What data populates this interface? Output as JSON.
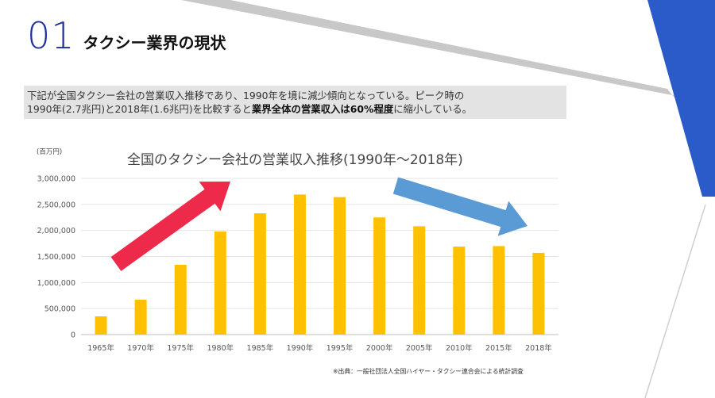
{
  "header": {
    "number": "01",
    "title": "タクシー業界の現状"
  },
  "description": {
    "line1": "下記が全国タクシー会社の営業収入推移であり、1990年を境に減少傾向となっている。ピーク時の",
    "line2_prefix": "1990年(2.7兆円)と2018年(1.6兆円)を比較すると",
    "line2_bold": "業界全体の営業収入は60%程度",
    "line2_suffix": "に縮小している。"
  },
  "source": "※出典：一般社団法人全国ハイヤー・タクシー連合会による統計調査",
  "colors": {
    "accent_blue": "#1e2f9e",
    "bar": "#ffc000",
    "arrow_up": "#ee2a4a",
    "arrow_down": "#5b9bd5",
    "corner": "#2b5bc8"
  },
  "chart_data": {
    "type": "bar",
    "title": "全国のタクシー会社の営業収入推移(1990年〜2018年)",
    "unit_label": "(百万円)",
    "categories": [
      "1965年",
      "1970年",
      "1975年",
      "1980年",
      "1985年",
      "1990年",
      "1995年",
      "2000年",
      "2005年",
      "2010年",
      "2015年",
      "2018年"
    ],
    "values": [
      350000,
      670000,
      1340000,
      1980000,
      2330000,
      2690000,
      2640000,
      2250000,
      2080000,
      1690000,
      1700000,
      1570000
    ],
    "y_ticks": [
      "0",
      "500,000",
      "1,000,000",
      "1,500,000",
      "2,000,000",
      "2,500,000",
      "3,000,000"
    ],
    "ylim": [
      0,
      3000000
    ],
    "grid": true,
    "legend": "none"
  }
}
